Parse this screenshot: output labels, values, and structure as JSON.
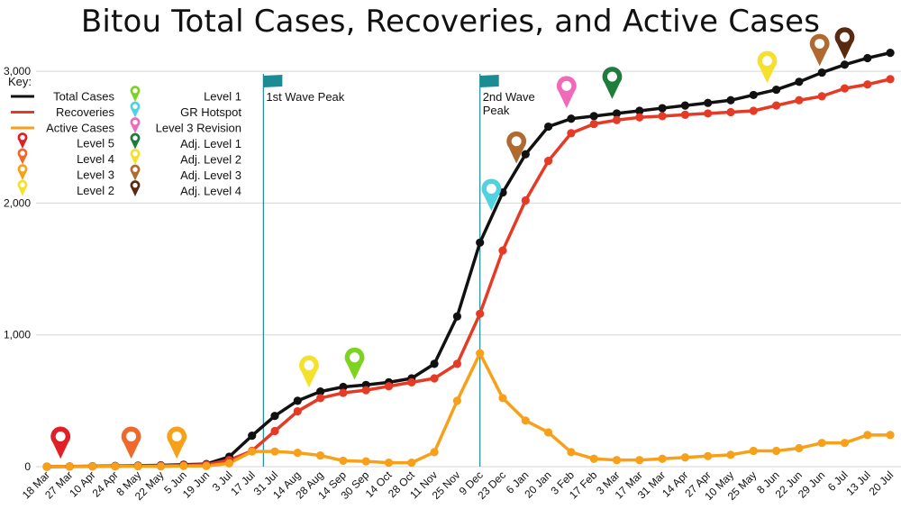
{
  "chart_data": {
    "type": "line",
    "title": "Bitou Total Cases, Recoveries, and Active Cases",
    "xlabel": "",
    "ylabel": "",
    "ylim": [
      0,
      3000
    ],
    "y_ticks": [
      "0",
      "1,000",
      "2,000",
      "3,000"
    ],
    "grid": "horizontal",
    "legend_title": "Key:",
    "x": [
      "18 Mar",
      "27 Mar",
      "10 Apr",
      "24 Apr",
      "8 May",
      "22 May",
      "5 Jun",
      "19 Jun",
      "3 Jul",
      "17 Jul",
      "31 Jul",
      "14 Aug",
      "28 Aug",
      "14 Sep",
      "30 Sep",
      "14 Oct",
      "28 Oct",
      "11 Nov",
      "25 Nov",
      "9 Dec",
      "23 Dec",
      "6 Jan",
      "20 Jan",
      "3 Feb",
      "17 Feb",
      "3 Mar",
      "17 Mar",
      "31 Mar",
      "14 Apr",
      "27 Apr",
      "10 May",
      "25 May",
      "8 Jun",
      "22 Jun",
      "29 Jun",
      "6 Jul",
      "13 Jul",
      "20 Jul"
    ],
    "series": [
      {
        "name": "Total Cases",
        "color": "#111111",
        "values": [
          0,
          2,
          3,
          5,
          8,
          10,
          15,
          20,
          75,
          235,
          385,
          500,
          570,
          605,
          620,
          640,
          670,
          780,
          1140,
          1700,
          2080,
          2370,
          2580,
          2640,
          2660,
          2680,
          2700,
          2720,
          2740,
          2760,
          2780,
          2820,
          2860,
          2920,
          2990,
          3050,
          3100,
          3140
        ]
      },
      {
        "name": "Recoveries",
        "color": "#e53a26",
        "values": [
          0,
          1,
          2,
          3,
          5,
          8,
          10,
          15,
          50,
          120,
          270,
          420,
          520,
          560,
          580,
          610,
          640,
          670,
          780,
          1160,
          1640,
          2020,
          2320,
          2530,
          2600,
          2630,
          2650,
          2660,
          2670,
          2680,
          2690,
          2700,
          2740,
          2780,
          2810,
          2870,
          2900,
          2940
        ]
      },
      {
        "name": "Active Cases",
        "color": "#f7a11a",
        "values": [
          0,
          1,
          1,
          2,
          3,
          2,
          5,
          5,
          25,
          115,
          115,
          105,
          85,
          45,
          40,
          30,
          30,
          110,
          500,
          860,
          520,
          350,
          260,
          110,
          60,
          50,
          50,
          60,
          70,
          80,
          90,
          120,
          120,
          140,
          180,
          180,
          240,
          240
        ]
      }
    ],
    "wave_markers": [
      {
        "label_line1": "1st Wave Peak",
        "label_line2": "",
        "x_index": 9.5
      },
      {
        "label_line1": "2nd Wave",
        "label_line2": "Peak",
        "x_index": 19
      }
    ],
    "event_pins": [
      {
        "label": "Level 5",
        "color": "#e01f26",
        "x_index": 0.6,
        "y": 60
      },
      {
        "label": "Level 4",
        "color": "#ef6a2a",
        "x_index": 3.7,
        "y": 60
      },
      {
        "label": "Level 3",
        "color": "#f7a11a",
        "x_index": 5.7,
        "y": 60
      },
      {
        "label": "Level 2",
        "color": "#f5e12b",
        "x_index": 11.5,
        "y": 600
      },
      {
        "label": "Level 1",
        "color": "#7ed321",
        "x_index": 13.5,
        "y": 660
      },
      {
        "label": "GR Hotspot",
        "color": "#4fd3e0",
        "x_index": 19.5,
        "y": 1940
      },
      {
        "label": "Level 3 Revision",
        "color": "#f06ab9",
        "x_index": 22.8,
        "y": 2720
      },
      {
        "label": "Adj. Level 1",
        "color": "#1e7d3a",
        "x_index": 24.8,
        "y": 2790
      },
      {
        "label": "Adj. Level 2",
        "color": "#f5e12b",
        "x_index": 31.6,
        "y": 2910
      },
      {
        "label": "Adj. Level 3",
        "color": "#b06a2f",
        "x_index": 20.6,
        "y": 2300
      },
      {
        "label": "Adj. Level 3",
        "color": "#b06a2f",
        "x_index": 33.9,
        "y": 3040
      },
      {
        "label": "Adj. Level 4",
        "color": "#5a2a10",
        "x_index": 35.0,
        "y": 3090
      }
    ],
    "legend_lines": [
      {
        "label": "Total Cases",
        "color": "#111111"
      },
      {
        "label": "Recoveries",
        "color": "#e53a26"
      },
      {
        "label": "Active Cases",
        "color": "#f7a11a"
      }
    ],
    "legend_pins_left": [
      {
        "label": "Level 5",
        "color": "#e01f26"
      },
      {
        "label": "Level 4",
        "color": "#ef6a2a"
      },
      {
        "label": "Level 3",
        "color": "#f7a11a"
      },
      {
        "label": "Level 2",
        "color": "#f5e12b"
      }
    ],
    "legend_pins_right": [
      {
        "label": "Level 1",
        "color": "#7ed321"
      },
      {
        "label": "GR Hotspot",
        "color": "#4fd3e0"
      },
      {
        "label": "Level 3 Revision",
        "color": "#f06ab9"
      },
      {
        "label": "Adj. Level 1",
        "color": "#1e7d3a"
      },
      {
        "label": "Adj. Level 2",
        "color": "#f5e12b"
      },
      {
        "label": "Adj. Level 3",
        "color": "#b06a2f"
      },
      {
        "label": "Adj. Level 4",
        "color": "#5a2a10"
      }
    ],
    "colors": {
      "grid": "#d6d6d6",
      "wave_line": "#1c8c94",
      "wave_flag": "#1c8c94"
    }
  }
}
